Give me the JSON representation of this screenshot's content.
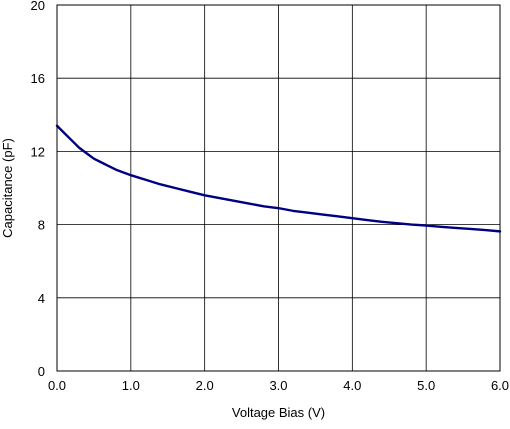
{
  "chart_data": {
    "type": "line",
    "title": "",
    "xlabel": "Voltage Bias (V)",
    "ylabel": "Capacitance (pF)",
    "xlim": [
      0,
      6
    ],
    "ylim": [
      0,
      20
    ],
    "x_ticks": [
      0,
      1,
      2,
      3,
      4,
      5,
      6
    ],
    "x_tick_labels": [
      "0.0",
      "1.0",
      "2.0",
      "3.0",
      "4.0",
      "5.0",
      "6.0"
    ],
    "y_ticks": [
      0,
      4,
      8,
      12,
      16,
      20
    ],
    "y_tick_labels": [
      "0",
      "4",
      "8",
      "12",
      "16",
      "20"
    ],
    "grid": true,
    "legend": "none",
    "series": [
      {
        "color": "#000080",
        "x": [
          0.0,
          0.1,
          0.2,
          0.3,
          0.4,
          0.5,
          0.6,
          0.7,
          0.8,
          0.9,
          1.0,
          1.2,
          1.4,
          1.6,
          1.8,
          2.0,
          2.2,
          2.4,
          2.6,
          2.8,
          3.0,
          3.2,
          3.4,
          3.6,
          3.8,
          4.0,
          4.2,
          4.4,
          4.6,
          4.8,
          5.0,
          5.2,
          5.4,
          5.6,
          5.8,
          6.0
        ],
        "y": [
          13.4,
          13.0,
          12.6,
          12.2,
          11.9,
          11.6,
          11.4,
          11.2,
          11.0,
          10.85,
          10.7,
          10.45,
          10.2,
          10.0,
          9.8,
          9.6,
          9.45,
          9.3,
          9.15,
          9.0,
          8.9,
          8.75,
          8.65,
          8.55,
          8.45,
          8.35,
          8.25,
          8.15,
          8.08,
          8.0,
          7.95,
          7.88,
          7.82,
          7.76,
          7.7,
          7.63
        ]
      }
    ]
  }
}
